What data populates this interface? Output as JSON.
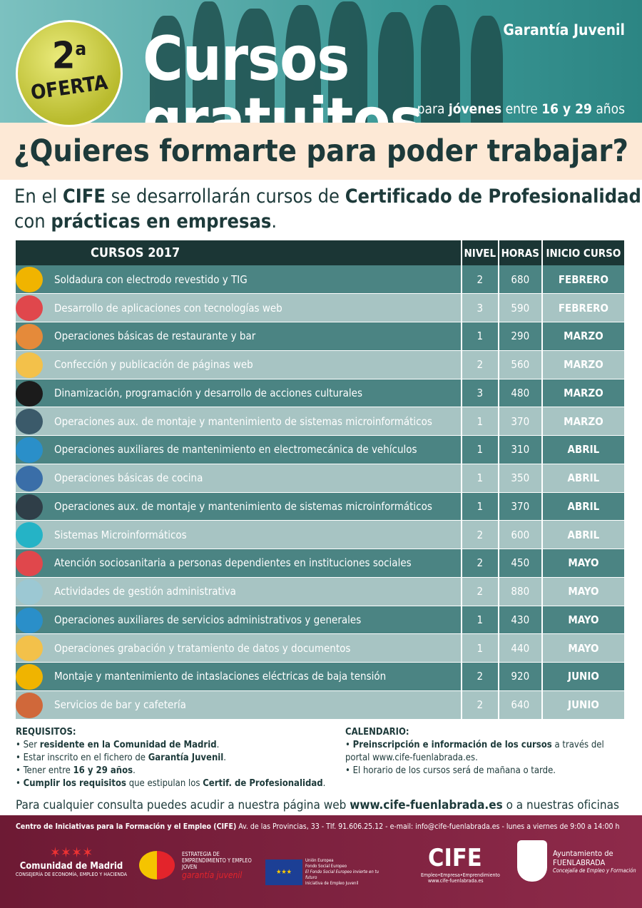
{
  "header": {
    "badge_number": "2",
    "badge_sup": "a",
    "badge_text": "OFERTA",
    "program": "Garantía Juvenil",
    "title": "Cursos gratuitos",
    "subtitle": [
      "para ",
      "jóvenes",
      " entre ",
      "16 y 29",
      " años"
    ]
  },
  "question": "¿Quieres formarte para poder trabajar?",
  "intro": [
    "En el ",
    "CIFE",
    " se desarrollarán cursos de ",
    "Certificado de Profesionalidad",
    " con ",
    "prácticas en empresas",
    "."
  ],
  "table": {
    "headers": [
      "CURSOS 2017",
      "NIVEL",
      "HORAS",
      "INICIO CURSO"
    ],
    "rows": [
      [
        "Soldadura con electrodo revestido y TIG",
        2,
        680,
        "FEBRERO"
      ],
      [
        "Desarrollo de aplicaciones con tecnologías web",
        3,
        590,
        "FEBRERO"
      ],
      [
        "Operaciones básicas de restaurante y bar",
        1,
        290,
        "MARZO"
      ],
      [
        "Confección y publicación de páginas web",
        2,
        560,
        "MARZO"
      ],
      [
        "Dinamización, programación y desarrollo de acciones culturales",
        3,
        480,
        "MARZO"
      ],
      [
        "Operaciones aux. de montaje y mantenimiento de sistemas microinformáticos",
        1,
        370,
        "MARZO"
      ],
      [
        "Operaciones auxiliares de mantenimiento en electromecánica de vehículos",
        1,
        310,
        "ABRIL"
      ],
      [
        "Operaciones básicas de cocina",
        1,
        350,
        "ABRIL"
      ],
      [
        "Operaciones aux. de montaje y mantenimiento de sistemas microinformáticos",
        1,
        370,
        "ABRIL"
      ],
      [
        "Sistemas Microinformáticos",
        2,
        600,
        "ABRIL"
      ],
      [
        "Atención sociosanitaria a personas dependientes en instituciones sociales",
        2,
        450,
        "MAYO"
      ],
      [
        "Actividades de gestión administrativa",
        2,
        880,
        "MAYO"
      ],
      [
        "Operaciones auxiliares de servicios administrativos y generales",
        1,
        430,
        "MAYO"
      ],
      [
        "Operaciones grabación y tratamiento de datos y documentos",
        1,
        440,
        "MAYO"
      ],
      [
        "Montaje y mantenimiento de intaslaciones eléctricas de baja tensión",
        2,
        920,
        "JUNIO"
      ],
      [
        "Servicios de bar y cafetería",
        2,
        640,
        "JUNIO"
      ]
    ]
  },
  "requirements": {
    "title": "REQUISITOS:",
    "items": [
      [
        "Ser ",
        "residente en la Comunidad de Madrid",
        "."
      ],
      [
        "Estar inscrito en el fichero de ",
        "Garantía Juvenil",
        "."
      ],
      [
        "Tener entre ",
        "16 y 29 años",
        "."
      ],
      [
        "Cumplir los requisitos",
        " que estipulan los ",
        "Certif. de Profesionalidad",
        "."
      ]
    ]
  },
  "calendar": {
    "title": "CALENDARIO:",
    "items": [
      [
        "Preinscripción e información de los cursos",
        " a través del portal www.cife-fuenlabrada.es."
      ],
      [
        "El horario de los cursos será de mañana o tarde."
      ]
    ]
  },
  "contact": [
    "Para cualquier consulta puedes acudir a nuestra página web ",
    "www.cife-fuenlabrada.es",
    " o a nuestras oficinas"
  ],
  "footer": {
    "address": [
      "Centro de Iniciativas para la Formación y el Empleo (CIFE)",
      " Av. de las Provincias, 33 - Tlf. 91.606.25.12 - e-mail: info@cife-fuenlabrada.es -  lunes a viernes de 9:00 a 14:00 h"
    ],
    "logos": {
      "madrid": [
        "Comunidad de Madrid",
        "CONSEJERÍA DE ECONOMÍA, EMPLEO Y HACIENDA"
      ],
      "estrategia": [
        "ESTRATEGIA DE EMPRENDIMIENTO Y EMPLEO JOVEN",
        "garantía juvenil"
      ],
      "ue": [
        "Unión Europea",
        "Fondo Social Europeo",
        "El Fondo Social Europeo invierte en tu futuro",
        "Iniciativa de Empleo Juvenil"
      ],
      "cife": [
        "CIFE",
        "Empleo•Empresa•Emprendimiento",
        "www.cife-fuenlabrada.es"
      ],
      "ayto": [
        "Ayuntamiento de",
        "FUENLABRADA",
        "Concejalía de Empleo y Formación"
      ]
    }
  }
}
